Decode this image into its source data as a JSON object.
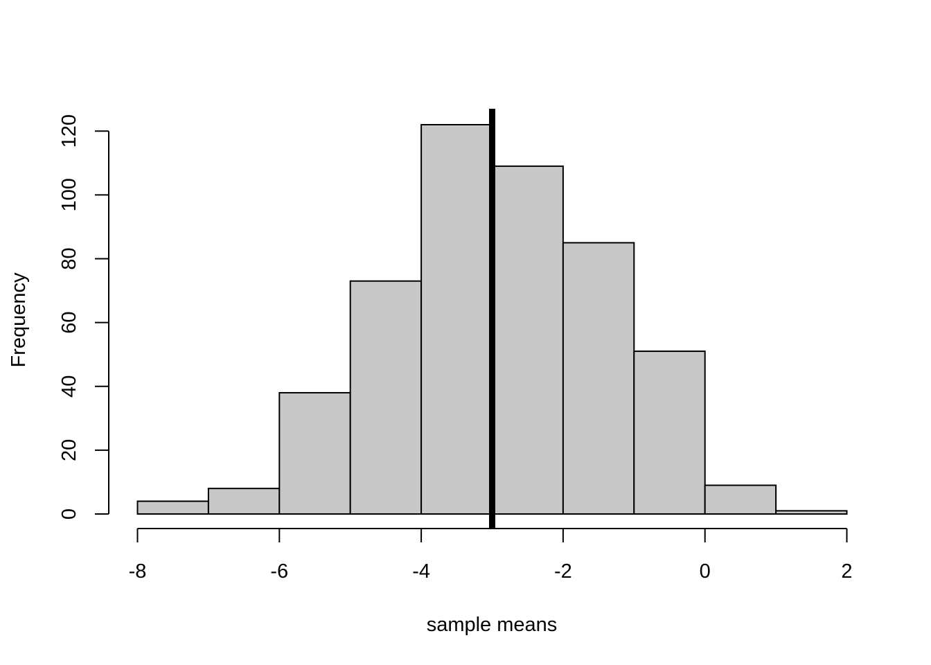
{
  "chart_data": {
    "type": "bar",
    "subtype": "histogram",
    "title": "",
    "xlabel": "sample means",
    "ylabel": "Frequency",
    "bins": [
      {
        "start": -8,
        "end": -7,
        "count": 4
      },
      {
        "start": -7,
        "end": -6,
        "count": 8
      },
      {
        "start": -6,
        "end": -5,
        "count": 38
      },
      {
        "start": -5,
        "end": -4,
        "count": 73
      },
      {
        "start": -4,
        "end": -3,
        "count": 122
      },
      {
        "start": -3,
        "end": -2,
        "count": 109
      },
      {
        "start": -2,
        "end": -1,
        "count": 85
      },
      {
        "start": -1,
        "end": 0,
        "count": 51
      },
      {
        "start": 0,
        "end": 1,
        "count": 9
      },
      {
        "start": 1,
        "end": 2,
        "count": 1
      }
    ],
    "x_ticks": [
      -8,
      -6,
      -4,
      -2,
      0,
      2
    ],
    "y_ticks": [
      0,
      20,
      40,
      60,
      80,
      100,
      120
    ],
    "xlim": [
      -8,
      2
    ],
    "ylim": [
      0,
      122
    ],
    "vertical_line": {
      "x": -3,
      "color": "#000000"
    },
    "bar_fill": "#c8c8c8",
    "bar_stroke": "#000000",
    "grid": false,
    "legend": "none"
  }
}
